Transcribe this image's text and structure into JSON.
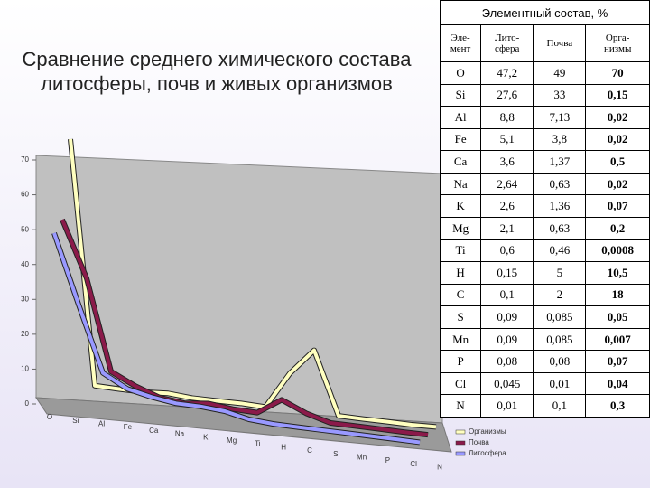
{
  "chart_data": {
    "type": "line3d",
    "title": "Сравнение среднего химического состава литосферы, почв и живых организмов",
    "categories": [
      "O",
      "Si",
      "Al",
      "Fe",
      "Ca",
      "Na",
      "K",
      "Mg",
      "Ti",
      "H",
      "C",
      "S",
      "Mn",
      "P",
      "Cl",
      "N"
    ],
    "series": [
      {
        "name": "Организмы",
        "color": "#ffffc0",
        "values": [
          70,
          0.15,
          0.02,
          0.02,
          0.5,
          0.02,
          0.07,
          0.2,
          0.0008,
          10.5,
          18,
          0.05,
          0.007,
          0.07,
          0.04,
          0.3
        ]
      },
      {
        "name": "Почва",
        "color": "#8b1a4a",
        "values": [
          49,
          33,
          7.13,
          3.8,
          1.37,
          0.63,
          1.36,
          0.63,
          0.46,
          5,
          2,
          0.085,
          0.085,
          0.08,
          0.01,
          0.1
        ]
      },
      {
        "name": "Литосфера",
        "color": "#9999ff",
        "values": [
          47.2,
          27.6,
          8.8,
          5.1,
          3.6,
          2.64,
          2.6,
          2.1,
          0.6,
          0.15,
          0.1,
          0.09,
          0.09,
          0.08,
          0.045,
          0.01
        ]
      }
    ],
    "ylim": [
      0,
      70
    ],
    "yticks": [
      0,
      10,
      20,
      30,
      40,
      50,
      60,
      70
    ],
    "legend": "bottom-right"
  },
  "table": {
    "title": "Элементный состав, %",
    "header": [
      "Эле-\nмент",
      "Лито-\nсфера",
      "Почва",
      "Орга-\nнизмы"
    ],
    "rows": [
      [
        "O",
        "47,2",
        "49",
        "70"
      ],
      [
        "Si",
        "27,6",
        "33",
        "0,15"
      ],
      [
        "Al",
        "8,8",
        "7,13",
        "0,02"
      ],
      [
        "Fe",
        "5,1",
        "3,8",
        "0,02"
      ],
      [
        "Ca",
        "3,6",
        "1,37",
        "0,5"
      ],
      [
        "Na",
        "2,64",
        "0,63",
        "0,02"
      ],
      [
        "K",
        "2,6",
        "1,36",
        "0,07"
      ],
      [
        "Mg",
        "2,1",
        "0,63",
        "0,2"
      ],
      [
        "Ti",
        "0,6",
        "0,46",
        "0,0008"
      ],
      [
        "H",
        "0,15",
        "5",
        "10,5"
      ],
      [
        "C",
        "0,1",
        "2",
        "18"
      ],
      [
        "S",
        "0,09",
        "0,085",
        "0,05"
      ],
      [
        "Mn",
        "0,09",
        "0,085",
        "0,007"
      ],
      [
        "P",
        "0,08",
        "0,08",
        "0,07"
      ],
      [
        "Cl",
        "0,045",
        "0,01",
        "0,04"
      ],
      [
        "N",
        "0,01",
        "0,1",
        "0,3"
      ]
    ]
  }
}
